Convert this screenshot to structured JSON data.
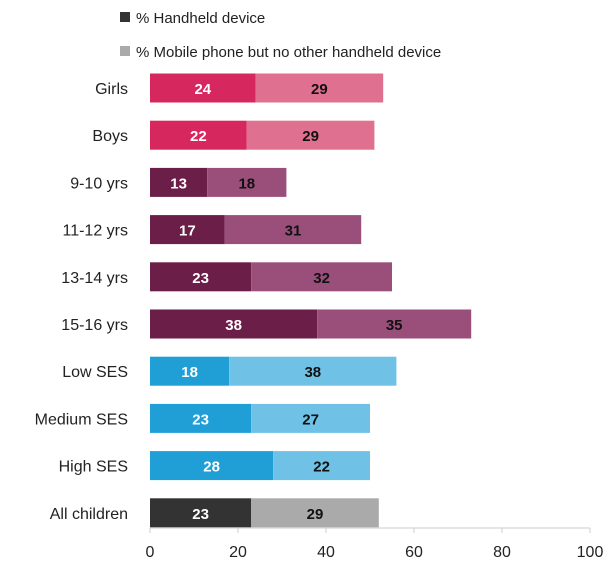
{
  "chart_data": {
    "type": "bar",
    "orientation": "horizontal",
    "stacked": true,
    "legend": [
      {
        "label": "% Handheld device",
        "color": "#333333"
      },
      {
        "label": "% Mobile phone but no other handheld device",
        "color": "#aaaaaa"
      }
    ],
    "categories": [
      "Girls",
      "Boys",
      "9-10 yrs",
      "11-12 yrs",
      "13-14 yrs",
      "15-16 yrs",
      "Low SES",
      "Medium SES",
      "High SES",
      "All children"
    ],
    "series": [
      {
        "name": "% Handheld device",
        "values": [
          24,
          22,
          13,
          17,
          23,
          38,
          18,
          23,
          28,
          23
        ]
      },
      {
        "name": "% Mobile phone but no other handheld device",
        "values": [
          29,
          29,
          18,
          31,
          32,
          35,
          38,
          27,
          22,
          29
        ]
      }
    ],
    "group_colors": [
      {
        "dark": "#d6285f",
        "light": "#e0708f"
      },
      {
        "dark": "#d6285f",
        "light": "#e0708f"
      },
      {
        "dark": "#6b1e48",
        "light": "#9a4f7a"
      },
      {
        "dark": "#6b1e48",
        "light": "#9a4f7a"
      },
      {
        "dark": "#6b1e48",
        "light": "#9a4f7a"
      },
      {
        "dark": "#6b1e48",
        "light": "#9a4f7a"
      },
      {
        "dark": "#1f9fd6",
        "light": "#6fc2e6"
      },
      {
        "dark": "#1f9fd6",
        "light": "#6fc2e6"
      },
      {
        "dark": "#1f9fd6",
        "light": "#6fc2e6"
      },
      {
        "dark": "#333333",
        "light": "#aaaaaa"
      }
    ],
    "label_colors": {
      "dark": "#ffffff",
      "light": "#111111"
    },
    "xlim": [
      0,
      100
    ],
    "xticks": [
      0,
      20,
      40,
      60,
      80,
      100
    ],
    "xlabel": "",
    "ylabel": "",
    "title": "",
    "grid": false,
    "legend_position": "top-left"
  }
}
